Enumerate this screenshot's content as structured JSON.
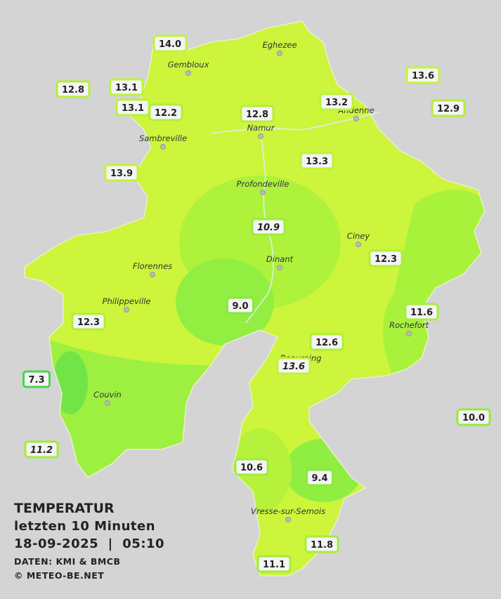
{
  "title": {
    "line1": "TEMPERATUR",
    "line2": "letzten 10 Minuten",
    "line3": "18-09-2025  |  05:10"
  },
  "credits": [
    "DATEN: KMI & BMCB",
    "© METEO-BE.NET"
  ],
  "places": [
    "Eghezee",
    "Gembloux",
    "Andenne",
    "Namur",
    "Sambreville",
    "Profondeville",
    "Ciney",
    "Dinant",
    "Florennes",
    "Philippeville",
    "Rochefort",
    "Beauraing",
    "Couvin",
    "Vresse-sur-Semois"
  ],
  "stations": [
    {
      "value": "14.0",
      "color": "#c2f23a"
    },
    {
      "value": "12.8",
      "color": "#b4ee38"
    },
    {
      "value": "13.1",
      "color": "#bdf23a"
    },
    {
      "value": "13.6",
      "color": "#c2f23a"
    },
    {
      "value": "13.2",
      "color": "#bdf23a"
    },
    {
      "value": "12.9",
      "color": "#b4ee38"
    },
    {
      "value": "13.1",
      "color": "#bdf23a"
    },
    {
      "value": "12.2",
      "color": "#b0ee38"
    },
    {
      "value": "12.8",
      "color": "#b4ee38"
    },
    {
      "value": "13.3",
      "color": "#bdf23a"
    },
    {
      "value": "13.9",
      "color": "#c2f23a"
    },
    {
      "value": "10.9",
      "color": "#9cec3c",
      "italic": true
    },
    {
      "value": "12.3",
      "color": "#b0ee38"
    },
    {
      "value": "9.0",
      "color": "#88e840"
    },
    {
      "value": "11.6",
      "color": "#a6ee3a"
    },
    {
      "value": "12.3",
      "color": "#b0ee38"
    },
    {
      "value": "12.6",
      "color": "#b0ee38"
    },
    {
      "value": "13.6",
      "color": "#c2f23a",
      "italic": true
    },
    {
      "value": "7.3",
      "color": "#44d84a"
    },
    {
      "value": "10.0",
      "color": "#96ea3e"
    },
    {
      "value": "11.2",
      "color": "#a2ec3a",
      "italic": true
    },
    {
      "value": "10.6",
      "color": "#9cec3c"
    },
    {
      "value": "9.4",
      "color": "#8ae840"
    },
    {
      "value": "11.8",
      "color": "#a6ee3a"
    },
    {
      "value": "11.1",
      "color": "#a2ec3a"
    }
  ]
}
